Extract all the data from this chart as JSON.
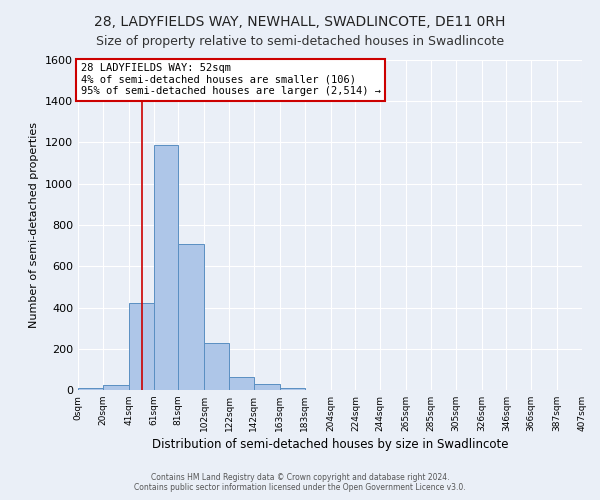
{
  "title": "28, LADYFIELDS WAY, NEWHALL, SWADLINCOTE, DE11 0RH",
  "subtitle": "Size of property relative to semi-detached houses in Swadlincote",
  "xlabel": "Distribution of semi-detached houses by size in Swadlincote",
  "ylabel": "Number of semi-detached properties",
  "footer1": "Contains HM Land Registry data © Crown copyright and database right 2024.",
  "footer2": "Contains public sector information licensed under the Open Government Licence v3.0.",
  "bin_edges": [
    0,
    20,
    41,
    61,
    81,
    102,
    122,
    142,
    163,
    183,
    204,
    224,
    244,
    265,
    285,
    305,
    326,
    346,
    366,
    387,
    407
  ],
  "bin_labels": [
    "0sqm",
    "20sqm",
    "41sqm",
    "61sqm",
    "81sqm",
    "102sqm",
    "122sqm",
    "142sqm",
    "163sqm",
    "183sqm",
    "204sqm",
    "224sqm",
    "244sqm",
    "265sqm",
    "285sqm",
    "305sqm",
    "326sqm",
    "346sqm",
    "366sqm",
    "387sqm",
    "407sqm"
  ],
  "counts": [
    10,
    25,
    420,
    1190,
    710,
    230,
    65,
    28,
    12,
    0,
    0,
    0,
    0,
    0,
    0,
    0,
    0,
    0,
    0,
    0
  ],
  "bar_color": "#aec6e8",
  "bar_edge_color": "#5a8fc2",
  "red_line_x": 52,
  "annotation_line1": "28 LADYFIELDS WAY: 52sqm",
  "annotation_line2": "4% of semi-detached houses are smaller (106)",
  "annotation_line3": "95% of semi-detached houses are larger (2,514) →",
  "annotation_box_color": "#ffffff",
  "annotation_box_edge": "#cc0000",
  "red_line_color": "#cc0000",
  "ylim": [
    0,
    1600
  ],
  "yticks": [
    0,
    200,
    400,
    600,
    800,
    1000,
    1200,
    1400,
    1600
  ],
  "bg_color": "#eaeff7",
  "grid_color": "#ffffff",
  "title_fontsize": 10,
  "subtitle_fontsize": 9,
  "annotation_fontsize": 7.5
}
